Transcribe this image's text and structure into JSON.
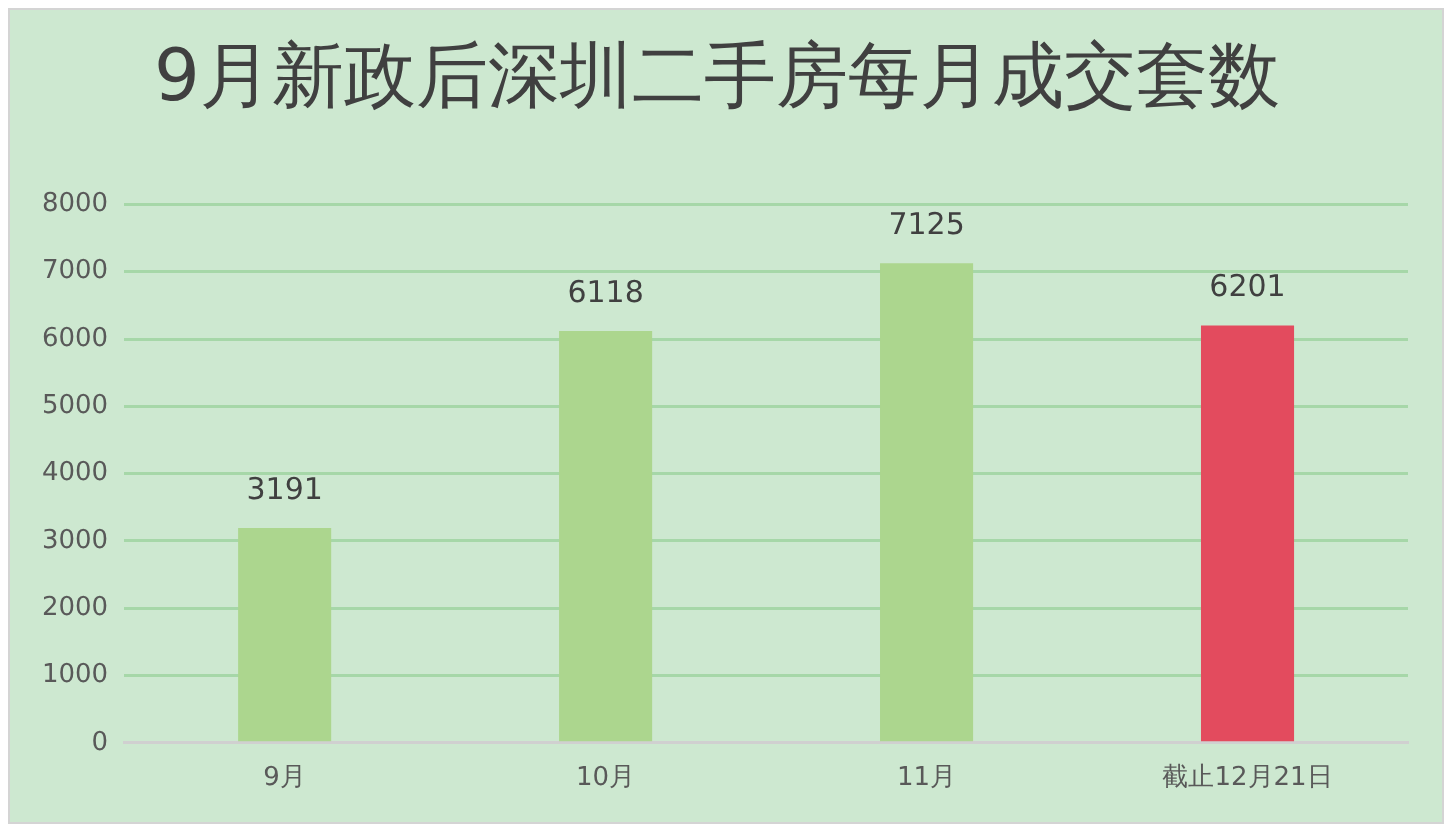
{
  "chart_data": {
    "type": "bar",
    "title": "9月新政后深圳二手房每月成交套数",
    "categories": [
      "9月",
      "10月",
      "11月",
      "截止12月21日"
    ],
    "values": [
      3191,
      6118,
      7125,
      6201
    ],
    "colors": [
      "#acd68e",
      "#acd68e",
      "#acd68e",
      "#e34b5e"
    ],
    "ylim": [
      0,
      8000
    ],
    "yticks": [
      0,
      1000,
      2000,
      3000,
      4000,
      5000,
      6000,
      7000,
      8000
    ],
    "grid": "y",
    "data_labels": true
  }
}
